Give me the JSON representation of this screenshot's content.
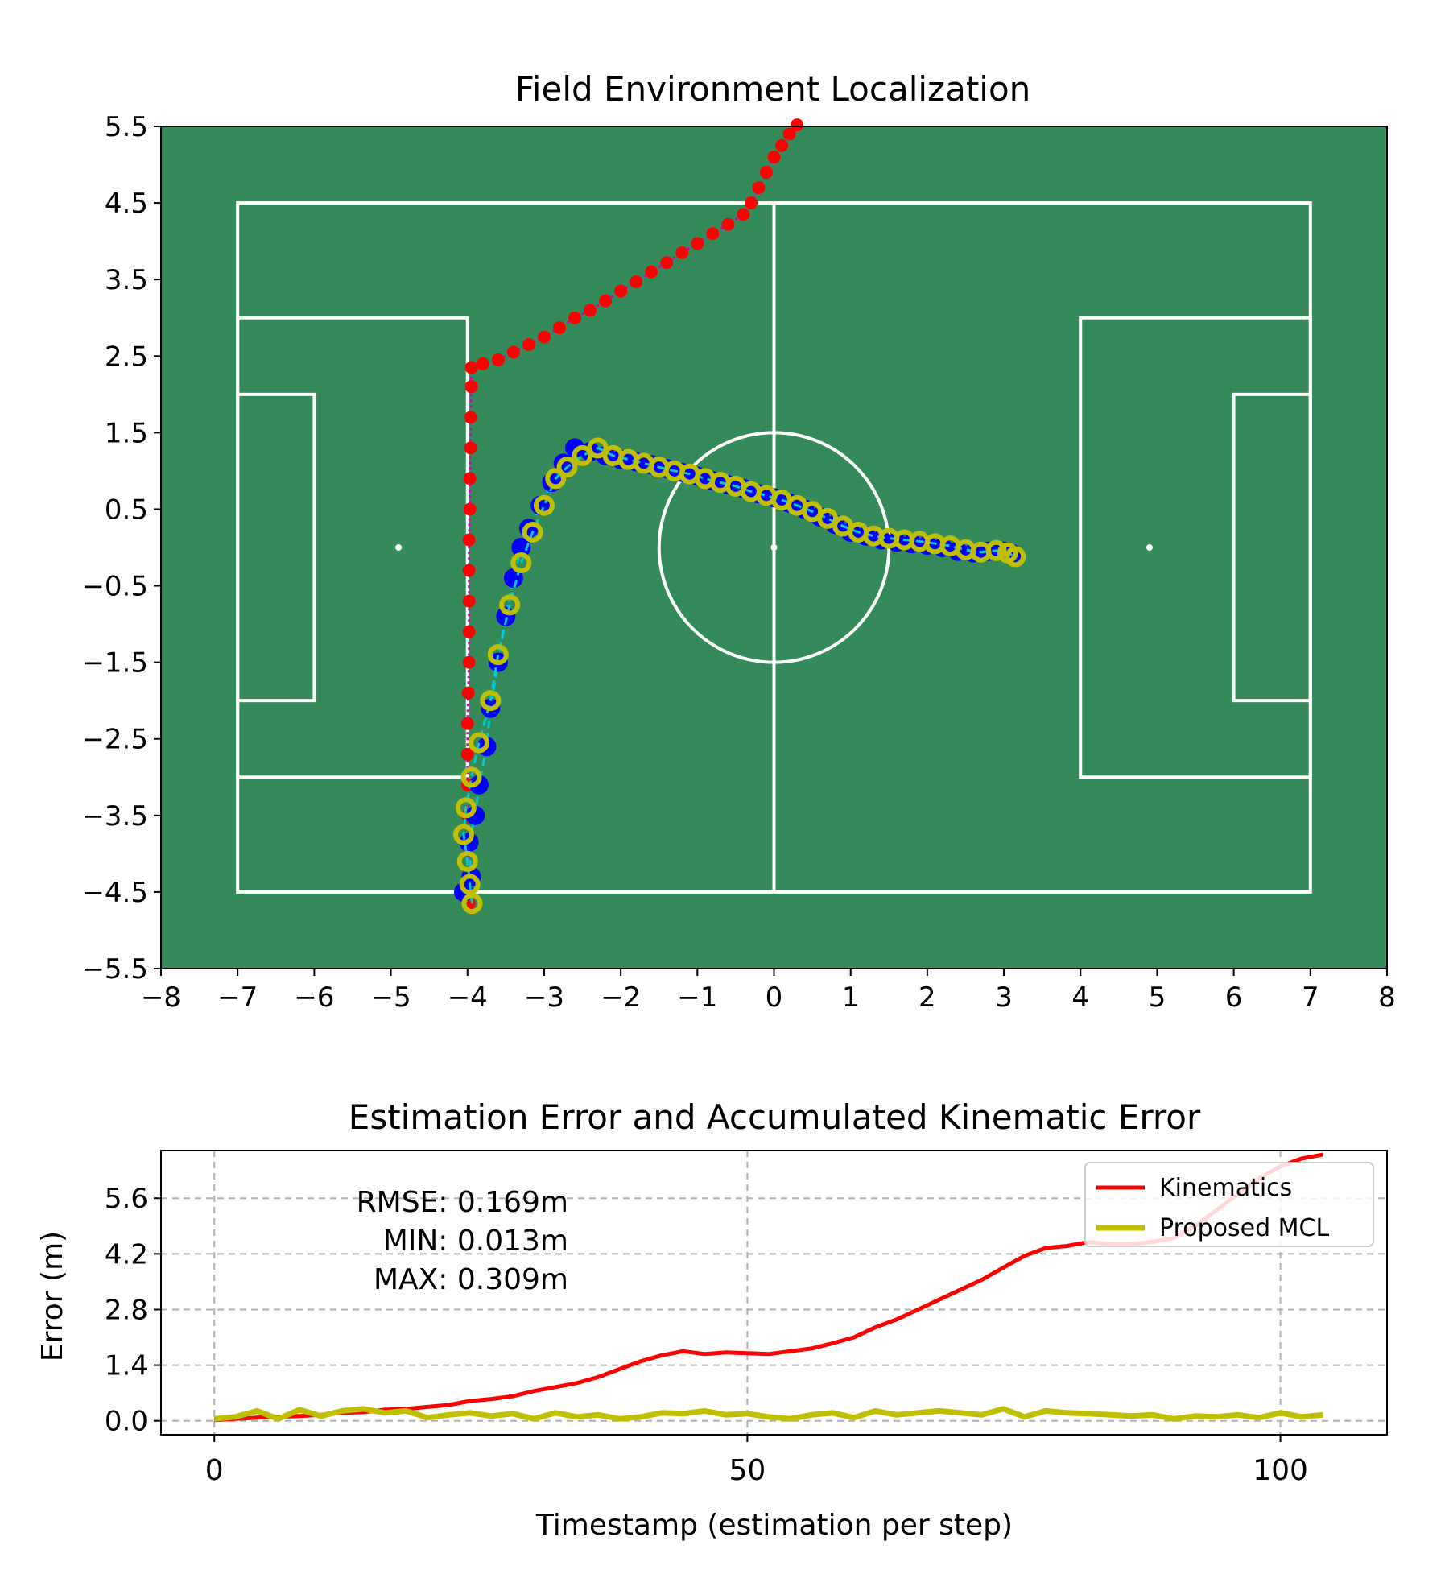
{
  "chart_data": [
    {
      "type": "scatter",
      "title": "Field Environment Localization",
      "xlabel": "",
      "ylabel": "",
      "xlim": [
        -8,
        8
      ],
      "ylim": [
        -5.5,
        5.5
      ],
      "x_ticks": [
        "−8",
        "−7",
        "−6",
        "−5",
        "−4",
        "−3",
        "−2",
        "−1",
        "0",
        "1",
        "2",
        "3",
        "4",
        "5",
        "6",
        "7",
        "8"
      ],
      "y_ticks": [
        "5.5",
        "4.5",
        "3.5",
        "2.5",
        "1.5",
        "0.5",
        "−0.5",
        "−1.5",
        "−2.5",
        "−3.5",
        "−4.5",
        "−5.5"
      ],
      "field_color": "#358a5a",
      "line_color": "#ffffff",
      "field": {
        "outer": [
          -7,
          -4.5,
          7,
          4.5
        ],
        "center_line_x": 0,
        "center_circle_radius": 1.5,
        "penalty_areas": [
          [
            -7,
            -3,
            -4,
            3
          ],
          [
            4,
            -3,
            7,
            3
          ]
        ],
        "goal_areas": [
          [
            -7,
            -2,
            -6,
            2
          ],
          [
            6,
            -2,
            7,
            2
          ]
        ],
        "spots": [
          [
            -4.9,
            0
          ],
          [
            0,
            0
          ],
          [
            4.9,
            0
          ]
        ]
      },
      "series": [
        {
          "color": "#ff0000",
          "marker_color": "#ff0000",
          "line_color": "#cc00cc",
          "points": [
            [
              -3.98,
              -4.65
            ],
            [
              -3.99,
              -4.3
            ],
            [
              -4.0,
              -3.9
            ],
            [
              -4.0,
              -3.5
            ],
            [
              -4.0,
              -3.1
            ],
            [
              -4.0,
              -2.7
            ],
            [
              -4.0,
              -2.3
            ],
            [
              -3.99,
              -1.9
            ],
            [
              -3.98,
              -1.5
            ],
            [
              -3.98,
              -1.1
            ],
            [
              -3.98,
              -0.7
            ],
            [
              -3.98,
              -0.3
            ],
            [
              -3.98,
              0.1
            ],
            [
              -3.97,
              0.5
            ],
            [
              -3.97,
              0.9
            ],
            [
              -3.96,
              1.3
            ],
            [
              -3.96,
              1.7
            ],
            [
              -3.95,
              2.1
            ],
            [
              -3.95,
              2.35
            ],
            [
              -3.8,
              2.4
            ],
            [
              -3.6,
              2.45
            ],
            [
              -3.4,
              2.55
            ],
            [
              -3.2,
              2.65
            ],
            [
              -3.0,
              2.75
            ],
            [
              -2.8,
              2.87
            ],
            [
              -2.6,
              3.0
            ],
            [
              -2.4,
              3.1
            ],
            [
              -2.2,
              3.22
            ],
            [
              -2.0,
              3.35
            ],
            [
              -1.8,
              3.47
            ],
            [
              -1.6,
              3.6
            ],
            [
              -1.4,
              3.72
            ],
            [
              -1.2,
              3.85
            ],
            [
              -1.0,
              3.97
            ],
            [
              -0.8,
              4.1
            ],
            [
              -0.6,
              4.22
            ],
            [
              -0.4,
              4.35
            ],
            [
              -0.3,
              4.5
            ],
            [
              -0.2,
              4.7
            ],
            [
              -0.1,
              4.9
            ],
            [
              0.0,
              5.1
            ],
            [
              0.1,
              5.25
            ],
            [
              0.2,
              5.4
            ],
            [
              0.3,
              5.52
            ]
          ]
        },
        {
          "color": "#0000ff",
          "marker_color": "#0000ff",
          "line_color": "#00cccc",
          "points": [
            [
              -4.05,
              -4.5
            ],
            [
              -3.95,
              -4.3
            ],
            [
              -3.98,
              -3.85
            ],
            [
              -3.9,
              -3.5
            ],
            [
              -3.85,
              -3.1
            ],
            [
              -3.75,
              -2.6
            ],
            [
              -3.7,
              -2.1
            ],
            [
              -3.6,
              -1.5
            ],
            [
              -3.5,
              -0.9
            ],
            [
              -3.4,
              -0.4
            ],
            [
              -3.3,
              0.0
            ],
            [
              -3.2,
              0.25
            ],
            [
              -3.05,
              0.55
            ],
            [
              -2.9,
              0.85
            ],
            [
              -2.75,
              1.1
            ],
            [
              -2.6,
              1.3
            ],
            [
              -2.4,
              1.25
            ],
            [
              -2.2,
              1.2
            ],
            [
              -2.0,
              1.15
            ],
            [
              -1.8,
              1.12
            ],
            [
              -1.6,
              1.08
            ],
            [
              -1.4,
              1.03
            ],
            [
              -1.2,
              0.98
            ],
            [
              -1.0,
              0.93
            ],
            [
              -0.8,
              0.87
            ],
            [
              -0.6,
              0.82
            ],
            [
              -0.4,
              0.77
            ],
            [
              -0.2,
              0.7
            ],
            [
              0.0,
              0.65
            ],
            [
              0.2,
              0.58
            ],
            [
              0.4,
              0.5
            ],
            [
              0.6,
              0.4
            ],
            [
              0.8,
              0.3
            ],
            [
              1.0,
              0.2
            ],
            [
              1.2,
              0.15
            ],
            [
              1.4,
              0.1
            ],
            [
              1.6,
              0.07
            ],
            [
              1.8,
              0.05
            ],
            [
              2.0,
              0.03
            ],
            [
              2.2,
              0.0
            ],
            [
              2.4,
              -0.05
            ],
            [
              2.6,
              -0.07
            ],
            [
              2.8,
              -0.05
            ],
            [
              3.0,
              -0.05
            ],
            [
              3.1,
              -0.08
            ]
          ]
        },
        {
          "color": "#bfbf00",
          "marker_color": "#bfbf00",
          "line_color": "#00cccc",
          "points": [
            [
              -3.94,
              -4.65
            ],
            [
              -3.97,
              -4.4
            ],
            [
              -4.0,
              -4.1
            ],
            [
              -4.05,
              -3.75
            ],
            [
              -4.02,
              -3.4
            ],
            [
              -3.95,
              -3.0
            ],
            [
              -3.85,
              -2.55
            ],
            [
              -3.7,
              -2.0
            ],
            [
              -3.6,
              -1.4
            ],
            [
              -3.45,
              -0.75
            ],
            [
              -3.3,
              -0.2
            ],
            [
              -3.15,
              0.2
            ],
            [
              -3.0,
              0.55
            ],
            [
              -2.85,
              0.9
            ],
            [
              -2.7,
              1.05
            ],
            [
              -2.5,
              1.2
            ],
            [
              -2.3,
              1.3
            ],
            [
              -2.1,
              1.2
            ],
            [
              -1.9,
              1.15
            ],
            [
              -1.7,
              1.1
            ],
            [
              -1.5,
              1.05
            ],
            [
              -1.3,
              1.0
            ],
            [
              -1.1,
              0.96
            ],
            [
              -0.9,
              0.9
            ],
            [
              -0.7,
              0.85
            ],
            [
              -0.5,
              0.8
            ],
            [
              -0.3,
              0.73
            ],
            [
              -0.1,
              0.68
            ],
            [
              0.1,
              0.62
            ],
            [
              0.3,
              0.55
            ],
            [
              0.5,
              0.47
            ],
            [
              0.7,
              0.38
            ],
            [
              0.9,
              0.28
            ],
            [
              1.1,
              0.2
            ],
            [
              1.3,
              0.15
            ],
            [
              1.5,
              0.12
            ],
            [
              1.7,
              0.1
            ],
            [
              1.9,
              0.08
            ],
            [
              2.1,
              0.05
            ],
            [
              2.3,
              0.02
            ],
            [
              2.5,
              -0.03
            ],
            [
              2.7,
              -0.06
            ],
            [
              2.9,
              -0.04
            ],
            [
              3.05,
              -0.07
            ],
            [
              3.15,
              -0.12
            ]
          ]
        }
      ]
    },
    {
      "type": "line",
      "title": "Estimation Error and Accumulated Kinematic Error",
      "xlabel": "Timestamp (estimation per step)",
      "ylabel": "Error (m)",
      "xlim": [
        -5,
        110
      ],
      "ylim": [
        -0.35,
        6.8
      ],
      "x_ticks": [
        "0",
        "50",
        "100"
      ],
      "y_ticks": [
        "0.0",
        "1.4",
        "2.8",
        "4.2",
        "5.6"
      ],
      "grid": true,
      "legend_position": "top-right",
      "annotations": [
        "RMSE: 0.169m",
        "MIN: 0.013m",
        "MAX: 0.309m"
      ],
      "series": [
        {
          "name": "Kinematics",
          "color": "#ff0000",
          "x": [
            0,
            2,
            4,
            6,
            8,
            10,
            12,
            14,
            16,
            18,
            20,
            22,
            24,
            26,
            28,
            30,
            32,
            34,
            36,
            38,
            40,
            42,
            44,
            46,
            48,
            50,
            52,
            54,
            56,
            58,
            60,
            62,
            64,
            66,
            68,
            70,
            72,
            74,
            76,
            78,
            80,
            82,
            84,
            86,
            88,
            90,
            92,
            94,
            96,
            98,
            100,
            102,
            104
          ],
          "y": [
            0.02,
            0.05,
            0.08,
            0.1,
            0.12,
            0.15,
            0.2,
            0.22,
            0.28,
            0.3,
            0.35,
            0.4,
            0.5,
            0.55,
            0.62,
            0.75,
            0.85,
            0.95,
            1.1,
            1.3,
            1.5,
            1.65,
            1.75,
            1.68,
            1.72,
            1.7,
            1.68,
            1.75,
            1.82,
            1.95,
            2.1,
            2.35,
            2.55,
            2.8,
            3.05,
            3.3,
            3.55,
            3.85,
            4.15,
            4.35,
            4.4,
            4.5,
            4.45,
            4.45,
            4.5,
            4.6,
            4.9,
            5.3,
            5.7,
            6.1,
            6.4,
            6.6,
            6.7
          ]
        },
        {
          "name": "Proposed MCL",
          "color": "#bfbf00",
          "x": [
            0,
            2,
            4,
            6,
            8,
            10,
            12,
            14,
            16,
            18,
            20,
            22,
            24,
            26,
            28,
            30,
            32,
            34,
            36,
            38,
            40,
            42,
            44,
            46,
            48,
            50,
            52,
            54,
            56,
            58,
            60,
            62,
            64,
            66,
            68,
            70,
            72,
            74,
            76,
            78,
            80,
            82,
            84,
            86,
            88,
            90,
            92,
            94,
            96,
            98,
            100,
            102,
            104
          ],
          "y": [
            0.05,
            0.1,
            0.25,
            0.05,
            0.28,
            0.12,
            0.25,
            0.3,
            0.2,
            0.25,
            0.08,
            0.15,
            0.2,
            0.12,
            0.18,
            0.05,
            0.2,
            0.1,
            0.15,
            0.05,
            0.1,
            0.2,
            0.18,
            0.25,
            0.15,
            0.18,
            0.1,
            0.05,
            0.15,
            0.2,
            0.08,
            0.25,
            0.15,
            0.2,
            0.25,
            0.2,
            0.15,
            0.3,
            0.1,
            0.25,
            0.2,
            0.18,
            0.15,
            0.12,
            0.15,
            0.05,
            0.12,
            0.1,
            0.15,
            0.08,
            0.2,
            0.1,
            0.15
          ]
        }
      ]
    }
  ]
}
